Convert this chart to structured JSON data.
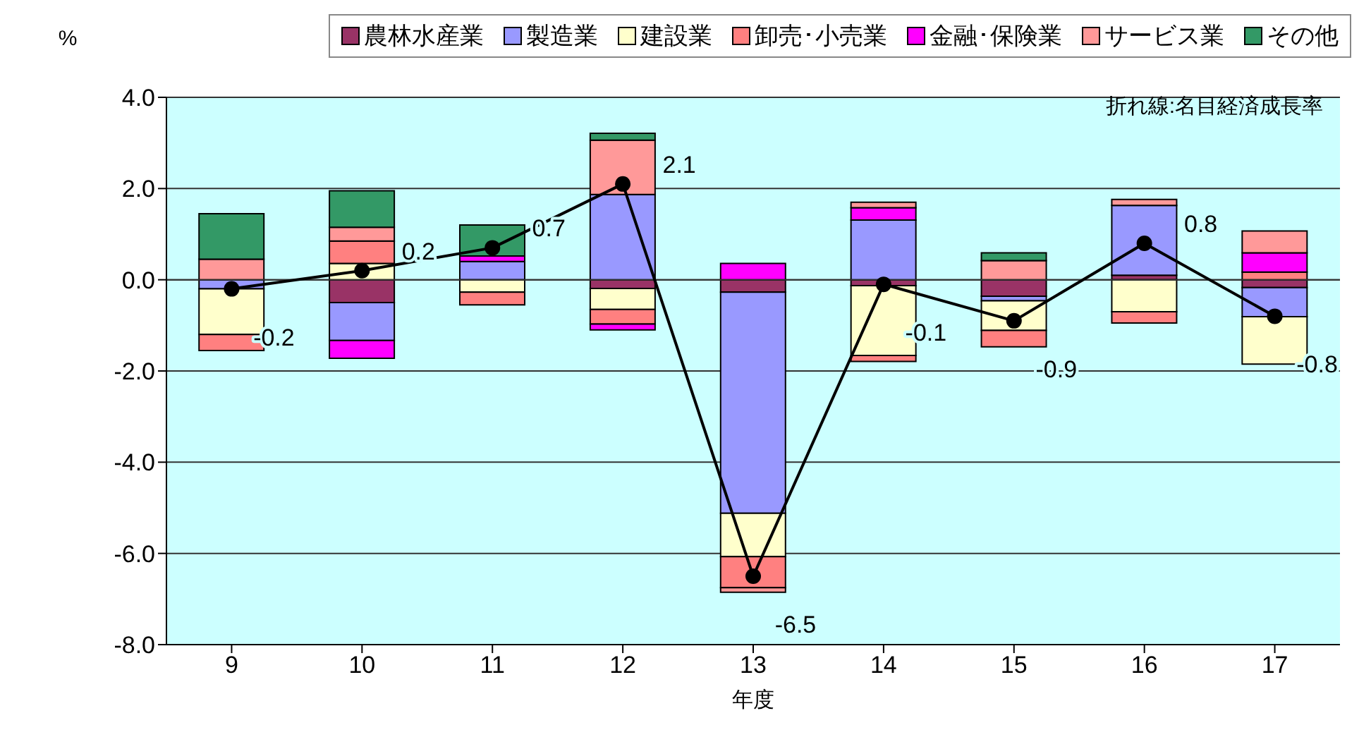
{
  "chart_data": {
    "type": "bar",
    "stacked": true,
    "xlabel": "年度",
    "ylabel": "%",
    "annotations": [
      "折れ線:名目経済成長率"
    ],
    "categories": [
      "9",
      "10",
      "11",
      "12",
      "13",
      "14",
      "15",
      "16",
      "17"
    ],
    "series": [
      {
        "name": "農林水産業",
        "color": "#993366",
        "values": [
          null,
          -0.5,
          0,
          -0.19,
          -0.27,
          -0.13,
          -0.36,
          0.1,
          -0.17
        ]
      },
      {
        "name": "製造業",
        "color": "#9999ff",
        "values": [
          -0.2,
          -0.83,
          0.4,
          1.87,
          -4.85,
          1.31,
          -0.1,
          1.53,
          -0.64
        ]
      },
      {
        "name": "建設業",
        "color": "#ffffcc",
        "values": [
          -1.0,
          0.36,
          -0.27,
          -0.46,
          -0.95,
          -1.53,
          -0.65,
          -0.7,
          -1.04
        ]
      },
      {
        "name": "卸売･小売業",
        "color": "#ff8080",
        "values": [
          -0.35,
          0.49,
          -0.28,
          -0.32,
          -0.68,
          -0.13,
          -0.36,
          -0.25,
          0.17
        ]
      },
      {
        "name": "金融･保険業",
        "color": "#ff00ff",
        "values": [
          0,
          -0.39,
          0.12,
          -0.13,
          0.36,
          0.27,
          0,
          0,
          0.42
        ]
      },
      {
        "name": "サービス業",
        "color": "#ff9999",
        "values": [
          0.45,
          0.3,
          0,
          1.19,
          -0.1,
          0.12,
          0.42,
          0.13,
          0.48
        ]
      },
      {
        "name": "その他",
        "color": "#339966",
        "values": [
          1.0,
          0.8,
          0.68,
          0.15,
          0,
          0,
          0.17,
          0,
          0
        ]
      },
      {
        "type": "line",
        "color": "#000000",
        "values": [
          -0.2,
          0.2,
          0.7,
          2.1,
          -6.5,
          -0.1,
          -0.9,
          0.8,
          -0.8
        ],
        "value_labels": [
          "-0.2",
          "0.2",
          "0.7",
          "2.1",
          "-6.5",
          "-0.1",
          "-0.9",
          "0.8",
          "-0.8"
        ]
      }
    ],
    "ylim": [
      -8,
      4
    ],
    "yticks": [
      {
        "value": -8,
        "label": "-8.0"
      },
      {
        "value": -6,
        "label": "-6.0"
      },
      {
        "value": -4,
        "label": "-4.0"
      },
      {
        "value": -2,
        "label": "-2.0"
      },
      {
        "value": 0,
        "label": "0.0"
      },
      {
        "value": 2,
        "label": "2.0"
      },
      {
        "value": 4,
        "label": "4.0"
      }
    ],
    "grid": "y",
    "legend": "top",
    "marker": "circle",
    "line_style": "solid"
  }
}
